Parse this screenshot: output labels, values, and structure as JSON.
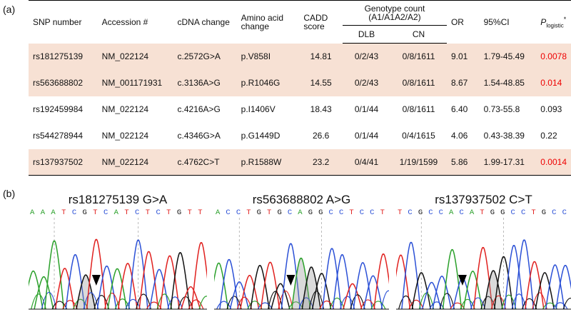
{
  "panels": {
    "a": "(a)",
    "b": "(b)"
  },
  "table": {
    "headers": {
      "snp": "SNP number",
      "accession": "Accession #",
      "cdna": "cDNA change",
      "amino": "Amino acid change",
      "cadd": "CADD score",
      "genotype": "Genotype count (A1/A1A2/A2)",
      "dlb": "DLB",
      "cn": "CN",
      "or": "OR",
      "ci": "95%CI",
      "p_main": "P",
      "p_sub": "logistic",
      "p_star": "*"
    },
    "rows": [
      {
        "snp": "rs181275139",
        "acc": "NM_022124",
        "cdna": "c.2572G>A",
        "aa": "p.V858I",
        "cadd": "14.81",
        "dlb": "0/2/43",
        "cn": "0/8/1611",
        "or": "9.01",
        "ci": "1.79-45.49",
        "p": "0.0078",
        "highlight": true
      },
      {
        "snp": "rs563688802",
        "acc": "NM_001171931",
        "cdna": "c.3136A>G",
        "aa": "p.R1046G",
        "cadd": "14.55",
        "dlb": "0/2/43",
        "cn": "0/8/1611",
        "or": "8.67",
        "ci": "1.54-48.85",
        "p": "0.014",
        "highlight": true
      },
      {
        "snp": "rs192459984",
        "acc": "NM_022124",
        "cdna": "c.4216A>G",
        "aa": "p.I1406V",
        "cadd": "18.43",
        "dlb": "0/1/44",
        "cn": "0/8/1611",
        "or": "6.40",
        "ci": "0.73-55.8",
        "p": "0.093",
        "highlight": false
      },
      {
        "snp": "rs544278944",
        "acc": "NM_022124",
        "cdna": "c.4346G>A",
        "aa": "p.G1449D",
        "cadd": "26.6",
        "dlb": "0/1/44",
        "cn": "0/4/1615",
        "or": "4.06",
        "ci": "0.43-38.39",
        "p": "0.22",
        "highlight": false
      },
      {
        "snp": "rs137937502",
        "acc": "NM_022124",
        "cdna": "c.4762C>T",
        "aa": "p.R1588W",
        "cadd": "23.2",
        "dlb": "0/4/41",
        "cn": "1/19/1599",
        "or": "5.86",
        "ci": "1.99-17.31",
        "p": "0.0014",
        "highlight": true
      }
    ]
  },
  "chromatograms": [
    {
      "title": "rs181275139 G>A",
      "seq": "AAATCGTCATCTCTGTT"
    },
    {
      "title": "rs563688802 A>G",
      "seq": "ACCTGTGCAGGCCTCCT"
    },
    {
      "title": "rs137937502 C>T",
      "seq": "TCGCCACATGGCCTGCC"
    }
  ],
  "base_colors": {
    "A": "#2aa02a",
    "C": "#2b50d6",
    "G": "#111111",
    "T": "#e0201e"
  },
  "colors": {
    "highlight": "#f7e1d4",
    "significant": "#ee0000"
  }
}
